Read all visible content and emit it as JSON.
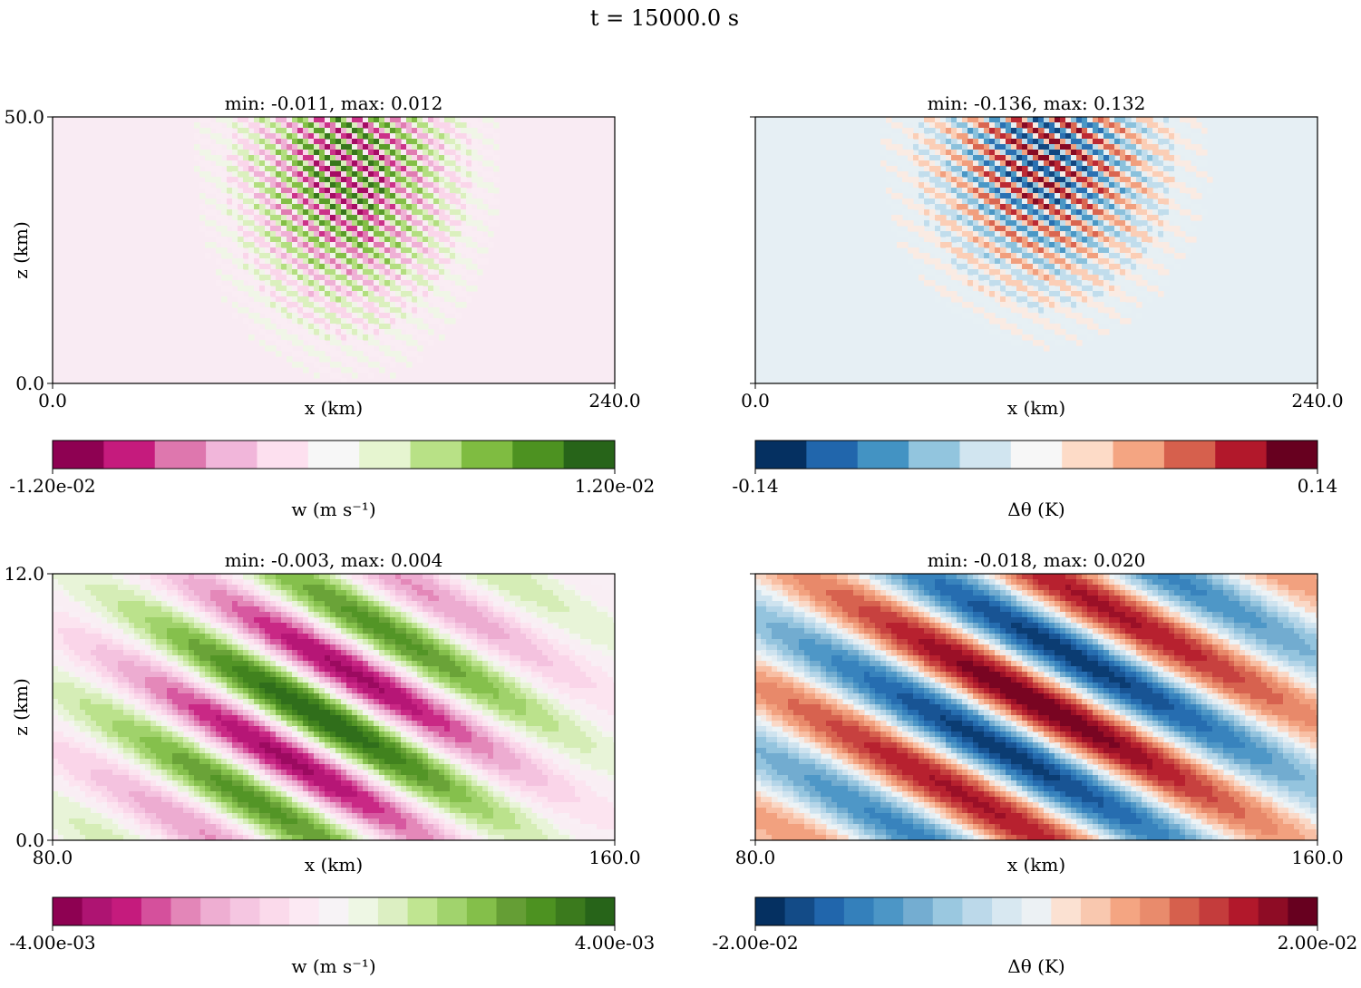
{
  "suptitle": "t = 15000.0 s",
  "chart_data": [
    {
      "type": "heatmap",
      "variable": "w",
      "title": "min: -0.011, max: 0.012",
      "xlabel": "x (km)",
      "ylabel": "z (km)",
      "xlim": [
        0.0,
        240.0
      ],
      "ylim": [
        0.0,
        50.0
      ],
      "x_ticks": [
        "0.0",
        "240.0"
      ],
      "y_ticks": [
        "0.0",
        "50.0"
      ],
      "colormap": [
        "#8e0152",
        "#c51b7d",
        "#de77ae",
        "#f1b6da",
        "#fde0ef",
        "#f7f7f7",
        "#e6f5d0",
        "#b8e186",
        "#7fbc41",
        "#4d9221",
        "#276419"
      ],
      "bands": 12,
      "background": "#f9ebf3",
      "colorbar": {
        "min": "-1.20e-02",
        "max": "1.20e-02",
        "label": "w (m s⁻¹)"
      },
      "min": -0.011,
      "max": 0.012,
      "wave": {
        "center_x": 126,
        "center_z": 40,
        "sigma_x": 28,
        "sigma_z": 17,
        "wavelength": 4.2,
        "tilt": 0.26
      }
    },
    {
      "type": "heatmap",
      "variable": "Δθ",
      "title": "min: -0.136, max: 0.132",
      "xlabel": "x (km)",
      "ylabel": "",
      "xlim": [
        0.0,
        240.0
      ],
      "ylim": [
        0.0,
        50.0
      ],
      "x_ticks": [
        "0.0",
        "240.0"
      ],
      "y_ticks": [],
      "colormap": [
        "#053061",
        "#2166ac",
        "#4393c3",
        "#92c5de",
        "#d1e5f0",
        "#f7f7f7",
        "#fddbc7",
        "#f4a582",
        "#d6604d",
        "#b2182b",
        "#67001f"
      ],
      "bands": 12,
      "background": "#e6eff4",
      "colorbar": {
        "min": "-0.14",
        "max": "0.14",
        "label": "Δθ (K)"
      },
      "min": -0.136,
      "max": 0.132,
      "wave": {
        "center_x": 124,
        "center_z": 42,
        "sigma_x": 30,
        "sigma_z": 15,
        "wavelength": 4.4,
        "tilt": 0.24
      }
    },
    {
      "type": "heatmap",
      "variable": "w",
      "title": "min: -0.003, max: 0.004",
      "xlabel": "x (km)",
      "ylabel": "z (km)",
      "xlim": [
        80.0,
        160.0
      ],
      "ylim": [
        0.0,
        12.0
      ],
      "x_ticks": [
        "80.0",
        "160.0"
      ],
      "y_ticks": [
        "0.0",
        "12.0"
      ],
      "colormap": [
        "#8e0152",
        "#ae1472",
        "#c51b7d",
        "#d5509c",
        "#e386b8",
        "#eeaed2",
        "#f5c6e1",
        "#fbdaeb",
        "#fce9f3",
        "#f7f3f6",
        "#eef7e4",
        "#dcefc2",
        "#c0e591",
        "#a1d36d",
        "#84bf4a",
        "#659e35",
        "#4d9221",
        "#3b7a1d",
        "#276419"
      ],
      "bands": 20,
      "background": "#f9eef4",
      "colorbar": {
        "min": "-4.00e-03",
        "max": "4.00e-03",
        "label": "w (m s⁻¹)"
      },
      "min": -0.003,
      "max": 0.004,
      "wave": {
        "center_x": 118,
        "center_z": 5.6,
        "sigma_x": 22,
        "sigma_z": 6,
        "wavelength": 5.6,
        "tilt": 0.18
      }
    },
    {
      "type": "heatmap",
      "variable": "Δθ",
      "title": "min: -0.018, max: 0.020",
      "xlabel": "x (km)",
      "ylabel": "",
      "xlim": [
        80.0,
        160.0
      ],
      "ylim": [
        0.0,
        12.0
      ],
      "x_ticks": [
        "80.0",
        "160.0"
      ],
      "y_ticks": [],
      "colormap": [
        "#053061",
        "#134b87",
        "#2166ac",
        "#3480bb",
        "#4c96c6",
        "#74add1",
        "#9ac8e0",
        "#bcd9ea",
        "#d8e8f1",
        "#ecf1f4",
        "#fbe1d2",
        "#f9c8af",
        "#f4a582",
        "#e98b6c",
        "#d6604d",
        "#c43c3c",
        "#b2182b",
        "#8e0c25",
        "#67001f"
      ],
      "bands": 20,
      "background": "#edf3f6",
      "colorbar": {
        "min": "-2.00e-02",
        "max": "2.00e-02",
        "label": "Δθ (K)"
      },
      "min": -0.018,
      "max": 0.02,
      "wave": {
        "center_x": 120,
        "center_z": 6.2,
        "sigma_x": 30,
        "sigma_z": 8,
        "wavelength": 6.0,
        "tilt": 0.17
      }
    }
  ]
}
